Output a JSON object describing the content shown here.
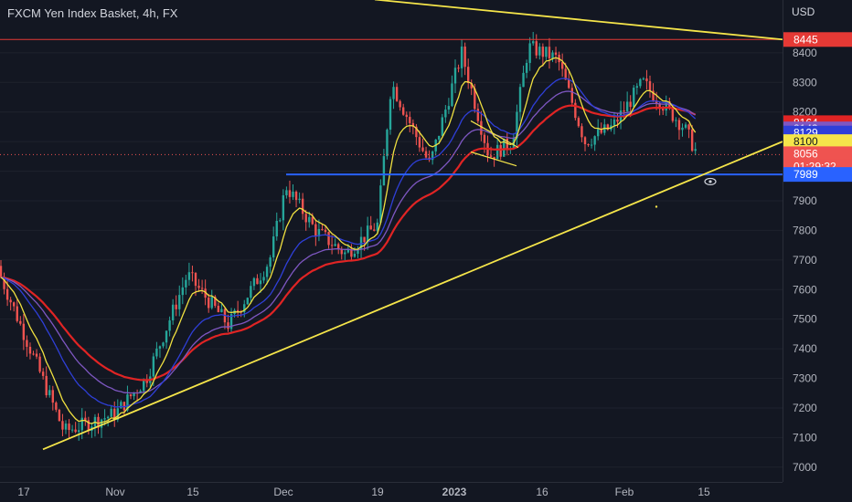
{
  "header": {
    "symbol_title": "FXCM Yen Index Basket, 4h, FX",
    "currency": "USD"
  },
  "colors": {
    "bg": "#131722",
    "up": "#26a69a",
    "down": "#ef5350",
    "ema_fast": "#f0e040",
    "ema_mid": "#2f3fd8",
    "ema_slow": "#7e57c2",
    "ema_long": "#e02424",
    "trendline": "#f5e54a",
    "support": "#2962ff",
    "resistance": "#e53935"
  },
  "y_axis": {
    "min": 6950,
    "max": 8560,
    "ticks": [
      "8400",
      "8300",
      "8200",
      "8100",
      "8000",
      "7900",
      "7800",
      "7700",
      "7600",
      "7500",
      "7400",
      "7300",
      "7200",
      "7100",
      "7000"
    ]
  },
  "x_axis": {
    "labels": [
      "17",
      "Nov",
      "15",
      "Dec",
      "19",
      "2023",
      "16",
      "Feb",
      "15"
    ]
  },
  "price_labels": [
    {
      "text": "8445",
      "bg": "#e53935",
      "fg": "#ffffff"
    },
    {
      "text": "8164",
      "bg": "#e02424",
      "fg": "#ffffff"
    },
    {
      "text": "8143",
      "bg": "#7e57c2",
      "fg": "#ffffff"
    },
    {
      "text": "8129",
      "bg": "#2f3fd8",
      "fg": "#ffffff"
    },
    {
      "text": "8100",
      "bg": "#f5e54a",
      "fg": "#131722"
    },
    {
      "text": "8056",
      "bg": "#ef5350",
      "fg": "#ffffff"
    },
    {
      "text": "01:29:32",
      "bg": "#ef5350",
      "fg": "#ffffff"
    },
    {
      "text": "7989",
      "bg": "#2962ff",
      "fg": "#ffffff"
    }
  ],
  "chart_data": {
    "type": "candlestick",
    "title": "FXCM Yen Index Basket, 4h, FX",
    "ylim": [
      6950,
      8560
    ],
    "yunit": "USD",
    "horizontal_levels": [
      {
        "name": "resistance",
        "value": 8445
      },
      {
        "name": "support",
        "value": 7989
      },
      {
        "name": "last",
        "value": 8056
      }
    ],
    "key_closes": [
      {
        "x": "Oct 14",
        "close": 7650
      },
      {
        "x": "Oct 20",
        "close": 7120
      },
      {
        "x": "Nov 1",
        "close": 7180
      },
      {
        "x": "Nov 10",
        "close": 7300
      },
      {
        "x": "Nov 16",
        "close": 7650
      },
      {
        "x": "Nov 22",
        "close": 7480
      },
      {
        "x": "Nov 28",
        "close": 7700
      },
      {
        "x": "Dec 2",
        "close": 7950
      },
      {
        "x": "Dec 8",
        "close": 7800
      },
      {
        "x": "Dec 14",
        "close": 7720
      },
      {
        "x": "Dec 19",
        "close": 7820
      },
      {
        "x": "Dec 21",
        "close": 8300
      },
      {
        "x": "Dec 28",
        "close": 8020
      },
      {
        "x": "Jan 3",
        "close": 8400
      },
      {
        "x": "Jan 9",
        "close": 8050
      },
      {
        "x": "Jan 13",
        "close": 8100
      },
      {
        "x": "Jan 17",
        "close": 8420
      },
      {
        "x": "Jan 20",
        "close": 8380
      },
      {
        "x": "Jan 26",
        "close": 8100
      },
      {
        "x": "Feb 1",
        "close": 8150
      },
      {
        "x": "Feb 6",
        "close": 8300
      },
      {
        "x": "Feb 10",
        "close": 8150
      },
      {
        "x": "Feb 13",
        "close": 8056
      }
    ],
    "moving_averages": [
      {
        "color": "ema_fast",
        "last": 8100
      },
      {
        "color": "ema_mid",
        "last": 8129
      },
      {
        "color": "ema_slow",
        "last": 8143
      },
      {
        "color": "ema_long",
        "last": 8164
      }
    ],
    "drawings": [
      {
        "type": "trendline",
        "from": {
          "x": "Oct 16",
          "y": 7060
        },
        "to": {
          "x": "Feb 20",
          "y": 8100
        }
      },
      {
        "type": "trendline",
        "from": {
          "x": "Dec 23",
          "y": 8580
        },
        "to": {
          "x": "Feb 20",
          "y": 8445
        }
      }
    ]
  }
}
